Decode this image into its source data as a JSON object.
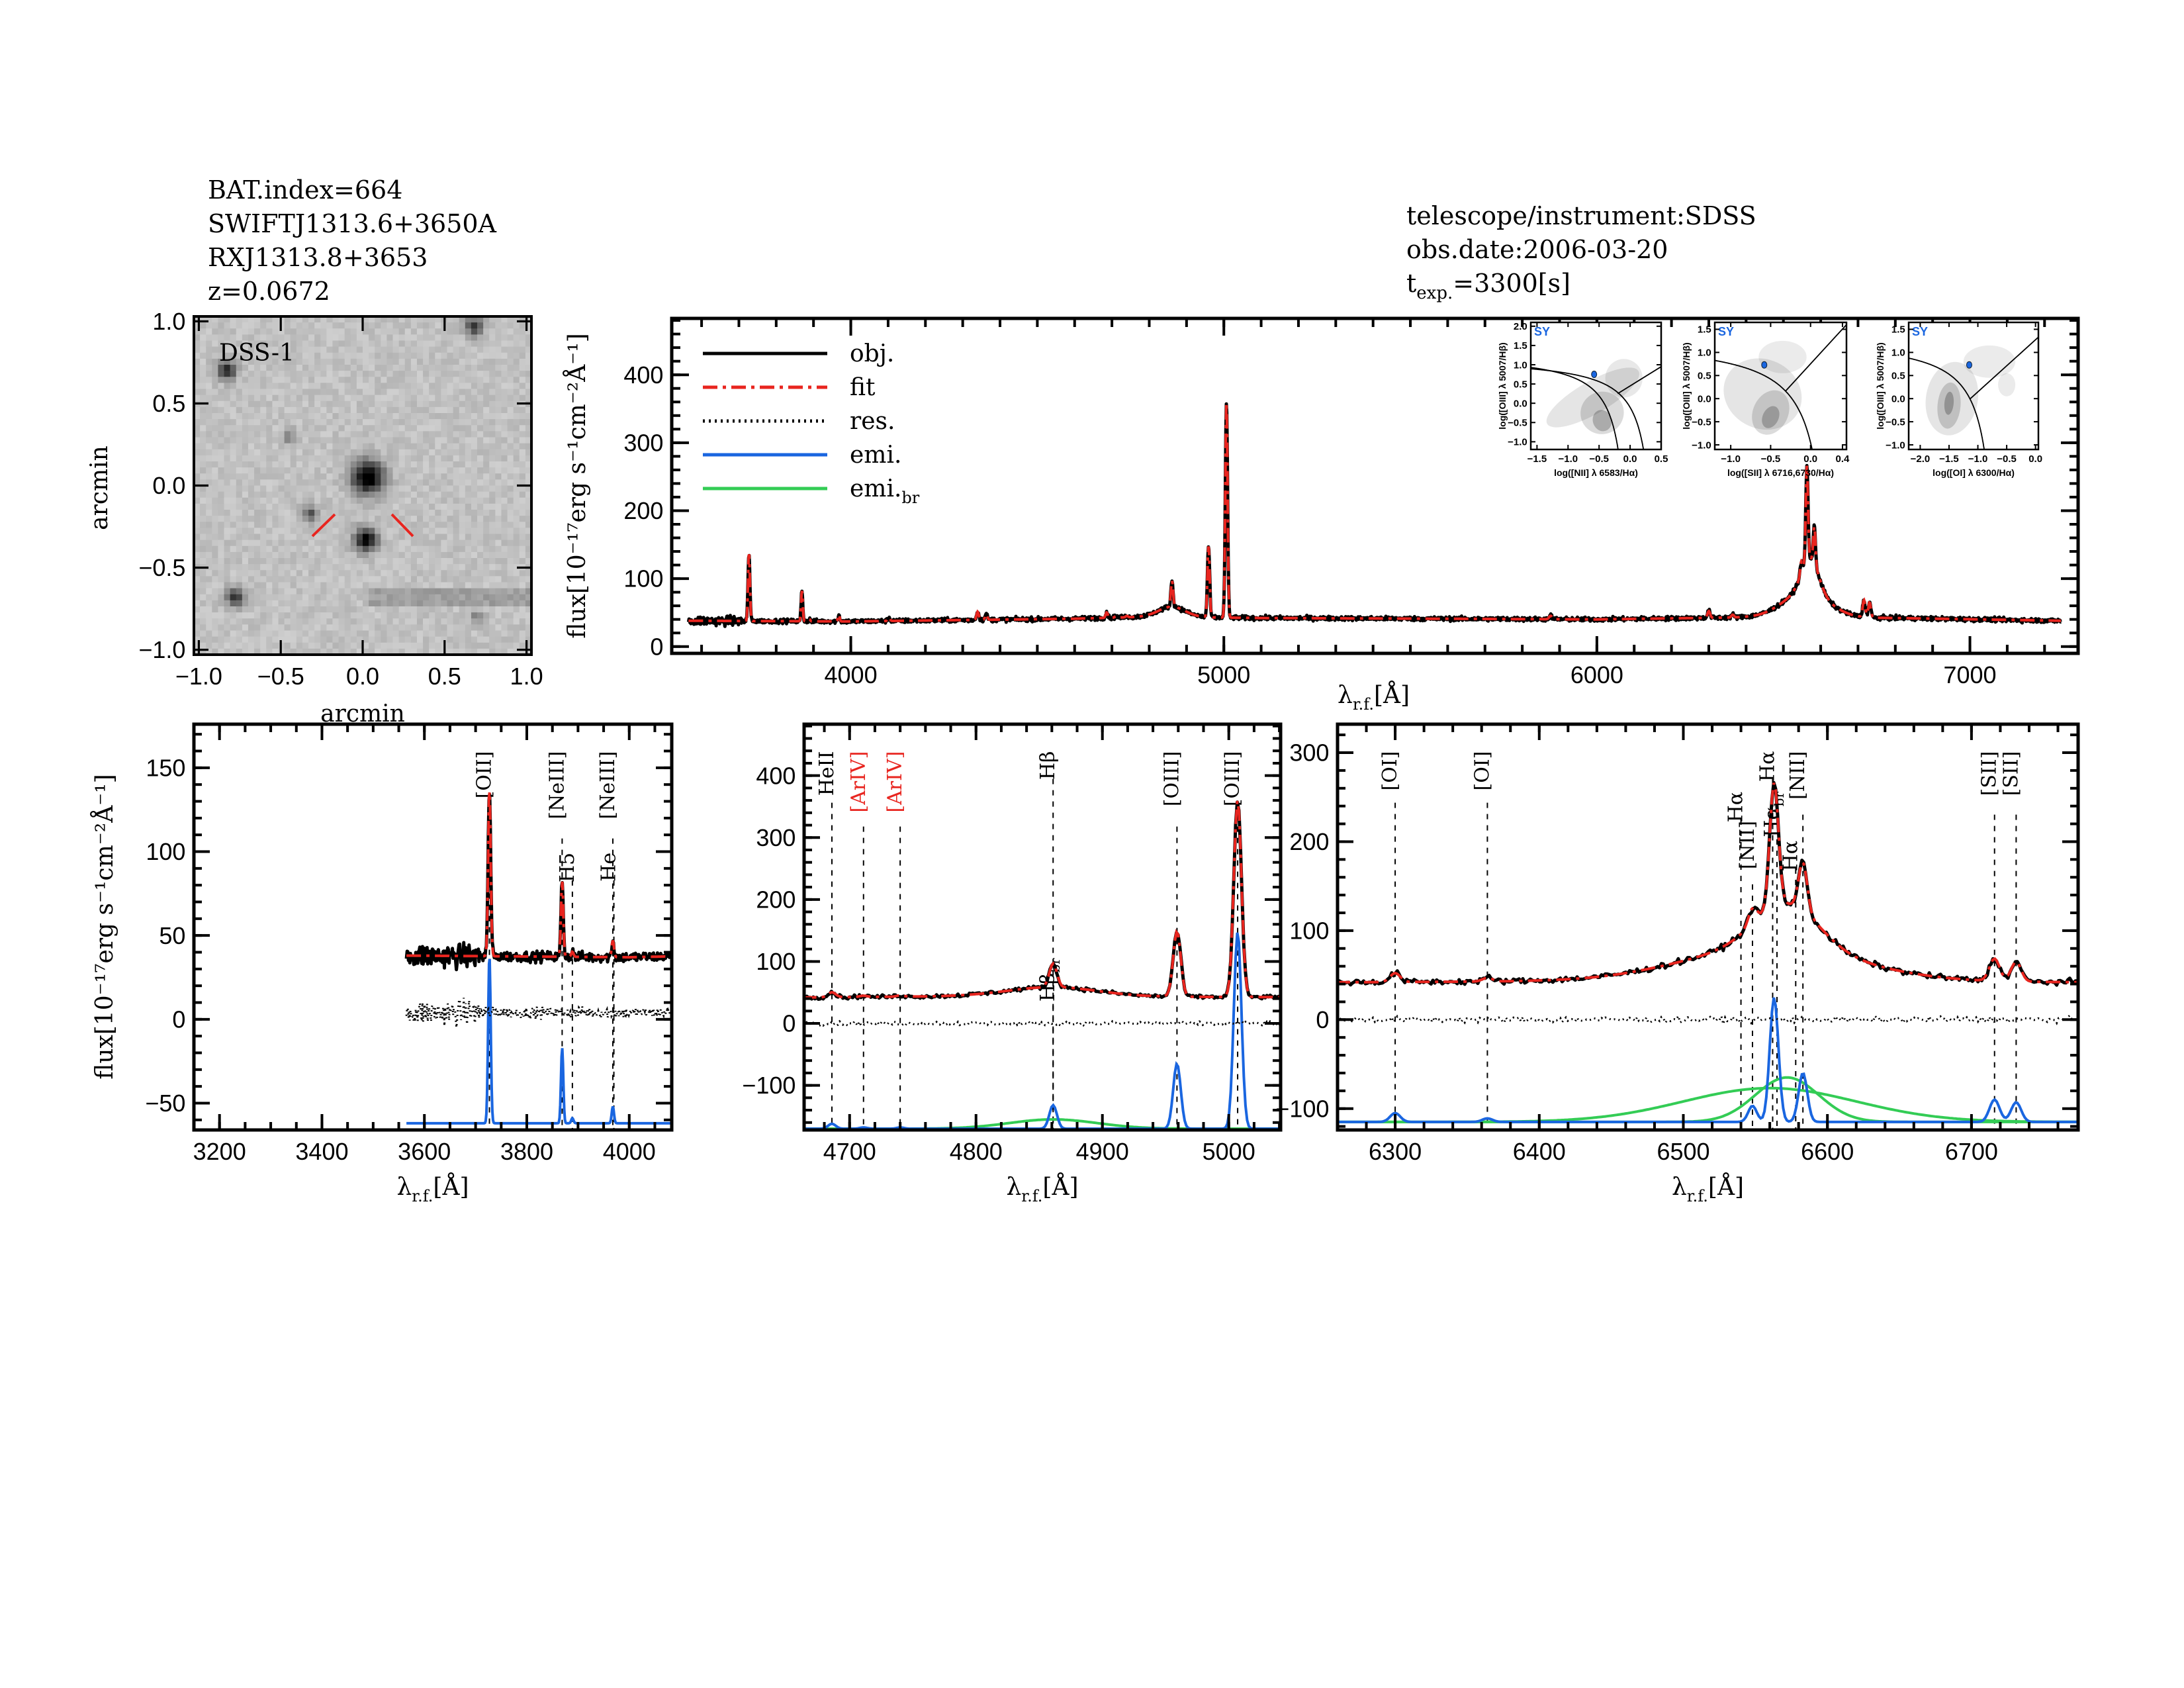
{
  "header": {
    "bat_index": "BAT.index=664",
    "swift_name": "SWIFTJ1313.6+3650A",
    "counterpart": "RXJ1313.8+3653",
    "redshift": "z=0.0672"
  },
  "obs_info": {
    "telescope": "telescope/instrument:SDSS",
    "obs_date": "obs.date:2006-03-20",
    "texp_symbol": "t",
    "texp_sub": "exp.",
    "texp_value": "=3300[s]"
  },
  "colors": {
    "obj": "#000000",
    "fit": "#e8251f",
    "res": "#000000",
    "emi": "#1a66e0",
    "emi_br": "#33cc55",
    "red_label": "#e8251f",
    "bpt_point": "#1a66e0",
    "bpt_class": "#1a66e0"
  },
  "chart_data": [
    {
      "id": "dss",
      "type": "image",
      "label": "DSS-1",
      "xlabel": "arcmin",
      "ylabel": "arcmin",
      "xlim": [
        -1.03,
        1.03
      ],
      "ylim": [
        -1.03,
        1.03
      ],
      "xticks": [
        -1.0,
        -0.5,
        0.0,
        0.5,
        1.0
      ],
      "xtick_labels": [
        "−1.0",
        "−0.5",
        "0.0",
        "0.5",
        "1.0"
      ],
      "yticks": [
        -1.0,
        -0.5,
        0.0,
        0.5,
        1.0
      ],
      "ytick_labels": [
        "−1.0",
        "−0.5",
        "0.0",
        "0.5",
        "1.0"
      ]
    },
    {
      "id": "main",
      "type": "line",
      "xlabel": {
        "symbol": "λ",
        "sub": "r.f.",
        "tail": "[Å]"
      },
      "ylabel": "flux[10⁻¹⁷erg s⁻¹cm⁻²Å⁻¹]",
      "xlim": [
        3520,
        7290
      ],
      "ylim": [
        -10,
        483
      ],
      "xticks": [
        4000,
        5000,
        6000,
        7000
      ],
      "xtick_labels": [
        "4000",
        "5000",
        "6000",
        "7000"
      ],
      "xminor": 100,
      "yticks": [
        0,
        100,
        200,
        300,
        400
      ],
      "ytick_labels": [
        "0",
        "100",
        "200",
        "300",
        "400"
      ],
      "yminor": 20,
      "legend": [
        {
          "key": "obj",
          "label": "obj.",
          "sub": ""
        },
        {
          "key": "fit",
          "label": "fit",
          "sub": ""
        },
        {
          "key": "res",
          "label": "res.",
          "sub": ""
        },
        {
          "key": "emi",
          "label": "emi.",
          "sub": ""
        },
        {
          "key": "emi_br",
          "label": "emi.",
          "sub": "br"
        }
      ],
      "legend_position": "top-left",
      "spectrum_model": {
        "wavelength_range": [
          3565,
          7245
        ],
        "continuum": [
          [
            3565,
            38
          ],
          [
            4000,
            37
          ],
          [
            4600,
            41
          ],
          [
            4800,
            44
          ],
          [
            5100,
            42
          ],
          [
            6000,
            40
          ],
          [
            6400,
            43
          ],
          [
            6800,
            42
          ],
          [
            7245,
            38
          ]
        ],
        "narrow_lines": [
          {
            "wave": 3727,
            "amp": 100,
            "sigma": 2.5
          },
          {
            "wave": 3869,
            "amp": 45,
            "sigma": 2.2
          },
          {
            "wave": 3889,
            "amp": 3,
            "sigma": 2.2
          },
          {
            "wave": 3968,
            "amp": 10,
            "sigma": 2.2
          },
          {
            "wave": 4102,
            "amp": 5,
            "sigma": 3
          },
          {
            "wave": 4340,
            "amp": 12,
            "sigma": 3
          },
          {
            "wave": 4363,
            "amp": 8,
            "sigma": 3
          },
          {
            "wave": 4686,
            "amp": 8,
            "sigma": 3
          },
          {
            "wave": 4711,
            "amp": 2,
            "sigma": 3
          },
          {
            "wave": 4740,
            "amp": 2,
            "sigma": 3
          },
          {
            "wave": 4861,
            "amp": 38,
            "sigma": 3
          },
          {
            "wave": 4959,
            "amp": 105,
            "sigma": 3
          },
          {
            "wave": 5007,
            "amp": 318,
            "sigma": 3
          },
          {
            "wave": 5876,
            "amp": 5,
            "sigma": 4
          },
          {
            "wave": 6300,
            "amp": 10,
            "sigma": 3.5
          },
          {
            "wave": 6364,
            "amp": 4,
            "sigma": 3.5
          },
          {
            "wave": 6548,
            "amp": 18,
            "sigma": 3
          },
          {
            "wave": 6563,
            "amp": 140,
            "sigma": 3
          },
          {
            "wave": 6583,
            "amp": 55,
            "sigma": 3
          },
          {
            "wave": 6716,
            "amp": 25,
            "sigma": 3.5
          },
          {
            "wave": 6731,
            "amp": 22,
            "sigma": 3.5
          }
        ],
        "broad_lines": [
          {
            "wave": 4861,
            "amp": 15,
            "sigma": 35
          },
          {
            "wave": 6572,
            "amp": 50,
            "sigma": 22
          },
          {
            "wave": 6560,
            "amp": 38,
            "sigma": 60
          }
        ]
      }
    },
    {
      "id": "left",
      "type": "line",
      "xlabel": {
        "symbol": "λ",
        "sub": "r.f.",
        "tail": "[Å]"
      },
      "ylabel": "flux[10⁻¹⁷erg s⁻¹cm⁻²Å⁻¹]",
      "xlim": [
        3150,
        4083
      ],
      "ylim": [
        -66,
        176
      ],
      "xticks": [
        3200,
        3400,
        3600,
        3800,
        4000
      ],
      "xtick_labels": [
        "3200",
        "3400",
        "3600",
        "3800",
        "4000"
      ],
      "xminor": 50,
      "yticks": [
        -50,
        0,
        50,
        100,
        150
      ],
      "ytick_labels": [
        "−50",
        "0",
        "50",
        "100",
        "150"
      ],
      "yminor": 10,
      "emi_offset": -62,
      "res_offset": 4,
      "markers": [
        {
          "label": "[OII]",
          "sub": "",
          "wave": 3727,
          "color": "#000000",
          "level": "high"
        },
        {
          "label": "[NeIII]",
          "sub": "",
          "wave": 3869,
          "color": "#000000",
          "level": "high"
        },
        {
          "label": "H5",
          "sub": "",
          "wave": 3889,
          "color": "#000000",
          "level": "low"
        },
        {
          "label": "[NeIII]",
          "sub": "",
          "wave": 3968,
          "color": "#000000",
          "level": "high"
        },
        {
          "label": "He",
          "sub": "",
          "wave": 3970,
          "color": "#000000",
          "level": "low"
        }
      ]
    },
    {
      "id": "mid",
      "type": "line",
      "xlabel": {
        "symbol": "λ",
        "sub": "r.f.",
        "tail": "[Å]"
      },
      "xlim": [
        4664,
        5041
      ],
      "ylim": [
        -172,
        483
      ],
      "xticks": [
        4700,
        4800,
        4900,
        5000
      ],
      "xtick_labels": [
        "4700",
        "4800",
        "4900",
        "5000"
      ],
      "xminor": 20,
      "yticks": [
        -100,
        0,
        100,
        200,
        300,
        400
      ],
      "ytick_labels": [
        "−100",
        "0",
        "100",
        "200",
        "300",
        "400"
      ],
      "yminor": 20,
      "emi_offset": -170,
      "res_offset": 0,
      "markers": [
        {
          "label": "HeII",
          "sub": "",
          "wave": 4686,
          "color": "#000000",
          "level": "high"
        },
        {
          "label": "[ArIV]",
          "sub": "",
          "wave": 4711,
          "color": "#e8251f",
          "level": "high"
        },
        {
          "label": "[ArIV]",
          "sub": "",
          "wave": 4740,
          "color": "#e8251f",
          "level": "high"
        },
        {
          "label": "Hβ",
          "sub": "",
          "wave": 4861,
          "color": "#000000",
          "level": "high"
        },
        {
          "label": "Hβ",
          "sub": "br",
          "wave": 4861,
          "color": "#000000",
          "level": "low"
        },
        {
          "label": "[OIII]",
          "sub": "",
          "wave": 4959,
          "color": "#000000",
          "level": "high"
        },
        {
          "label": "[OIII]",
          "sub": "",
          "wave": 5007,
          "color": "#000000",
          "level": "high"
        }
      ]
    },
    {
      "id": "right",
      "type": "line",
      "xlabel": {
        "symbol": "λ",
        "sub": "r.f.",
        "tail": "[Å]"
      },
      "xlim": [
        6260,
        6774
      ],
      "ylim": [
        -124,
        332
      ],
      "xticks": [
        6300,
        6400,
        6500,
        6600,
        6700
      ],
      "xtick_labels": [
        "6300",
        "6400",
        "6500",
        "6600",
        "6700"
      ],
      "xminor": 20,
      "yticks": [
        -100,
        0,
        100,
        200,
        300
      ],
      "ytick_labels": [
        "−100",
        "0",
        "100",
        "200",
        "300"
      ],
      "yminor": 20,
      "emi_offset": -115,
      "res_offset": 0,
      "markers": [
        {
          "label": "[OI]",
          "sub": "",
          "wave": 6300,
          "color": "#000000",
          "level": "high"
        },
        {
          "label": "[OI]",
          "sub": "",
          "wave": 6364,
          "color": "#000000",
          "level": "high"
        },
        {
          "label": "Hα",
          "sub": "",
          "wave": 6540,
          "color": "#000000",
          "level": "mid"
        },
        {
          "label": "[NII]",
          "sub": "",
          "wave": 6548,
          "color": "#000000",
          "level": "high"
        },
        {
          "label": "Hα",
          "sub": "",
          "wave": 6562,
          "color": "#000000",
          "level": "high"
        },
        {
          "label": "Hα",
          "sub": "br",
          "wave": 6565,
          "color": "#000000",
          "level": "mid"
        },
        {
          "label": "Hα",
          "sub": "",
          "wave": 6578,
          "color": "#000000",
          "level": "mid"
        },
        {
          "label": "[NII]",
          "sub": "",
          "wave": 6583,
          "color": "#000000",
          "level": "high"
        },
        {
          "label": "[SII]",
          "sub": "",
          "wave": 6716,
          "color": "#000000",
          "level": "high"
        },
        {
          "label": "[SII]",
          "sub": "",
          "wave": 6731,
          "color": "#000000",
          "level": "high"
        }
      ]
    },
    {
      "id": "bpt_nii",
      "type": "scatter",
      "class_label": "SY",
      "xlabel": "log([NII] λ 6583/Hα)",
      "ylabel": "log([OIII] λ 5007/Hβ)",
      "xlim": [
        -1.6,
        0.5
      ],
      "ylim": [
        -1.2,
        2.1
      ],
      "xticks": [
        -1.5,
        -1.0,
        -0.5,
        0.0,
        0.5
      ],
      "xtick_labels": [
        "−1.5",
        "−1.0",
        "−0.5",
        "0.0",
        "0.5"
      ],
      "yticks": [
        -1.0,
        -0.5,
        0.0,
        0.5,
        1.0,
        1.5,
        2.0
      ],
      "ytick_labels": [
        "−1.0",
        "−0.5",
        "0.0",
        "0.5",
        "1.0",
        "1.5",
        "2.0"
      ],
      "point": {
        "x": -0.58,
        "y": 0.75
      }
    },
    {
      "id": "bpt_sii",
      "type": "scatter",
      "class_label": "SY",
      "xlabel": "log([SII] λ 6716,6730/Hα)",
      "ylabel": "log([OIII] λ 5007/Hβ)",
      "xlim": [
        -1.2,
        0.45
      ],
      "ylim": [
        -1.1,
        1.65
      ],
      "xticks": [
        -1.0,
        -0.5,
        0.0,
        0.4
      ],
      "xtick_labels": [
        "−1.0",
        "−0.5",
        "0.0",
        "0.4"
      ],
      "yticks": [
        -1.0,
        -0.5,
        0.0,
        0.5,
        1.0,
        1.5
      ],
      "ytick_labels": [
        "−1.0",
        "−0.5",
        "0.0",
        "0.5",
        "1.0",
        "1.5"
      ],
      "point": {
        "x": -0.58,
        "y": 0.73
      }
    },
    {
      "id": "bpt_oi",
      "type": "scatter",
      "class_label": "SY",
      "xlabel": "log([OI] λ 6300/Hα)",
      "ylabel": "log([OIII] λ 5007/Hβ)",
      "xlim": [
        -2.2,
        0.05
      ],
      "ylim": [
        -1.1,
        1.65
      ],
      "xticks": [
        -2.0,
        -1.5,
        -1.0,
        -0.5,
        0.0
      ],
      "xtick_labels": [
        "−2.0",
        "−1.5",
        "−1.0",
        "−0.5",
        "0.0"
      ],
      "yticks": [
        -1.0,
        -0.5,
        0.0,
        0.5,
        1.0,
        1.5
      ],
      "ytick_labels": [
        "−1.0",
        "−0.5",
        "0.0",
        "0.5",
        "1.0",
        "1.5"
      ],
      "point": {
        "x": -1.15,
        "y": 0.73
      }
    }
  ]
}
